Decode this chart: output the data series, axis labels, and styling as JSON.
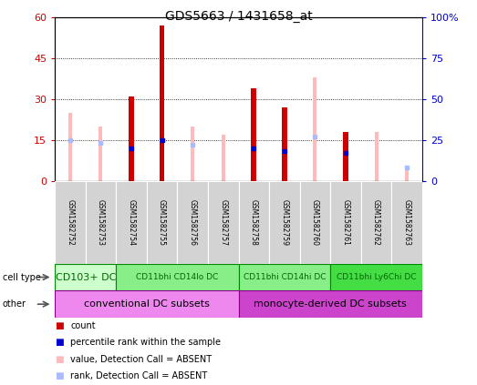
{
  "title": "GDS5663 / 1431658_at",
  "samples": [
    "GSM1582752",
    "GSM1582753",
    "GSM1582754",
    "GSM1582755",
    "GSM1582756",
    "GSM1582757",
    "GSM1582758",
    "GSM1582759",
    "GSM1582760",
    "GSM1582761",
    "GSM1582762",
    "GSM1582763"
  ],
  "red_bars": [
    0,
    0,
    31,
    57,
    0,
    0,
    34,
    27,
    0,
    18,
    0,
    0
  ],
  "pink_bars": [
    25,
    20,
    0,
    0,
    20,
    17,
    0,
    0,
    38,
    0,
    18,
    4
  ],
  "blue_squares_y": [
    0,
    0,
    20,
    25,
    0,
    0,
    20,
    18,
    0,
    17,
    0,
    0
  ],
  "light_blue_squares_y": [
    25,
    23,
    0,
    0,
    22,
    0,
    0,
    0,
    27,
    0,
    0,
    8
  ],
  "left_ylim": [
    0,
    60
  ],
  "right_ylim": [
    0,
    100
  ],
  "left_yticks": [
    0,
    15,
    30,
    45,
    60
  ],
  "left_yticklabels": [
    "0",
    "15",
    "30",
    "45",
    "60"
  ],
  "right_yticks": [
    0,
    25,
    50,
    75,
    100
  ],
  "right_yticklabels": [
    "0",
    "25",
    "50",
    "75",
    "100%"
  ],
  "cell_type_groups": [
    {
      "label": "CD103+ DC",
      "start": 0,
      "end": 2,
      "color": "#ccffcc",
      "text_color": "#006600",
      "fontsize": 8
    },
    {
      "label": "CD11bhi CD14lo DC",
      "start": 2,
      "end": 6,
      "color": "#88ee88",
      "text_color": "#006600",
      "fontsize": 6.5
    },
    {
      "label": "CD11bhi CD14hi DC",
      "start": 6,
      "end": 9,
      "color": "#88ee88",
      "text_color": "#006600",
      "fontsize": 6.5
    },
    {
      "label": "CD11bhi Ly6Chi DC",
      "start": 9,
      "end": 12,
      "color": "#44dd44",
      "text_color": "#006600",
      "fontsize": 6.5
    }
  ],
  "other_groups": [
    {
      "label": "conventional DC subsets",
      "start": 0,
      "end": 6,
      "color": "#ee88ee",
      "text_color": "#000000",
      "fontsize": 8
    },
    {
      "label": "monocyte-derived DC subsets",
      "start": 6,
      "end": 12,
      "color": "#cc44cc",
      "text_color": "#000000",
      "fontsize": 8
    }
  ],
  "red_color": "#cc0000",
  "pink_color": "#ffbbbb",
  "blue_color": "#0000cc",
  "light_blue_color": "#aabbff",
  "grid_color": "black",
  "bg_color": "white",
  "sample_box_color": "#d3d3d3",
  "pink_bar_width": 0.12,
  "red_bar_width": 0.17,
  "marker_size": 3.5
}
